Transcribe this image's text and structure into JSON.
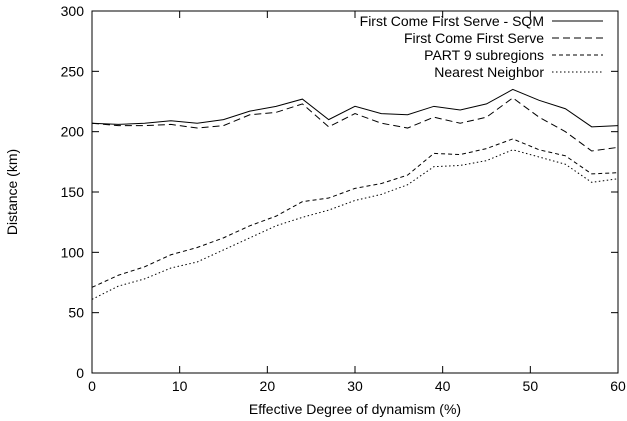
{
  "chart_data": {
    "type": "line",
    "xlabel": "Effective Degree of dynamism (%)",
    "ylabel": "Distance (km)",
    "xlim": [
      0,
      60
    ],
    "ylim": [
      0,
      300
    ],
    "x_ticks": [
      0,
      10,
      20,
      30,
      40,
      50,
      60
    ],
    "y_ticks": [
      0,
      50,
      100,
      150,
      200,
      250,
      300
    ],
    "grid": false,
    "legend_position": "top-right",
    "x": [
      0,
      3,
      6,
      9,
      12,
      15,
      18,
      21,
      24,
      27,
      30,
      33,
      36,
      39,
      42,
      45,
      48,
      51,
      54,
      57,
      60
    ],
    "series": [
      {
        "name": "First Come First Serve - SQM",
        "dash": "solid",
        "values": [
          207,
          206,
          207,
          209,
          207,
          210,
          217,
          221,
          227,
          210,
          221,
          215,
          214,
          221,
          218,
          223,
          235,
          226,
          219,
          204,
          205
        ]
      },
      {
        "name": "First Come First Serve",
        "dash": "dashed",
        "values": [
          207,
          205,
          205,
          206,
          203,
          205,
          214,
          216,
          223,
          204,
          215,
          207,
          203,
          212,
          207,
          212,
          228,
          212,
          200,
          184,
          187
        ]
      },
      {
        "name": "PART 9 subregions",
        "dash": "short-dashed",
        "values": [
          71,
          81,
          88,
          98,
          104,
          112,
          122,
          130,
          142,
          145,
          153,
          157,
          164,
          182,
          181,
          186,
          194,
          185,
          180,
          165,
          166
        ]
      },
      {
        "name": "Nearest Neighbor",
        "dash": "dotted",
        "values": [
          61,
          72,
          78,
          87,
          92,
          102,
          112,
          122,
          129,
          135,
          143,
          148,
          156,
          171,
          172,
          176,
          185,
          179,
          173,
          158,
          161
        ]
      }
    ]
  }
}
